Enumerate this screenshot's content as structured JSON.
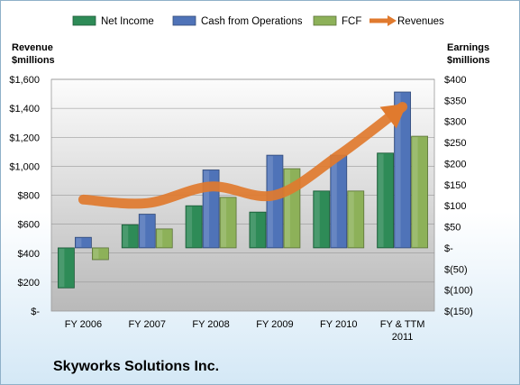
{
  "chart_data": {
    "type": "bar",
    "categories": [
      "FY 2006",
      "FY 2007",
      "FY 2008",
      "FY 2009",
      "FY 2010",
      "FY & TTM 2011"
    ],
    "series": [
      {
        "name": "Net Income",
        "axis": "right",
        "values": [
          -95,
          55,
          100,
          85,
          135,
          225
        ],
        "color": "#2e8b57"
      },
      {
        "name": "Cash from Operations",
        "axis": "right",
        "values": [
          25,
          80,
          185,
          220,
          220,
          370
        ],
        "color": "#4f73b8"
      },
      {
        "name": "FCF",
        "axis": "right",
        "values": [
          -28,
          45,
          120,
          188,
          135,
          265
        ],
        "color": "#8db159"
      },
      {
        "name": "Revenues",
        "axis": "left",
        "type": "line",
        "values": [
          770,
          745,
          860,
          800,
          1075,
          1410
        ],
        "color": "#e07a2e"
      }
    ],
    "left_axis": {
      "label_line1": "Revenue",
      "label_line2": "$millions",
      "ylim": [
        0,
        1600
      ],
      "ticks": [
        {
          "v": 0,
          "label": "$-"
        },
        {
          "v": 200,
          "label": "$200"
        },
        {
          "v": 400,
          "label": "$400"
        },
        {
          "v": 600,
          "label": "$600"
        },
        {
          "v": 800,
          "label": "$800"
        },
        {
          "v": 1000,
          "label": "$1,000"
        },
        {
          "v": 1200,
          "label": "$1,200"
        },
        {
          "v": 1400,
          "label": "$1,400"
        },
        {
          "v": 1600,
          "label": "$1,600"
        }
      ]
    },
    "right_axis": {
      "label_line1": "Earnings",
      "label_line2": "$millions",
      "ylim": [
        -150,
        400
      ],
      "ticks": [
        {
          "v": -150,
          "label": "$(150)"
        },
        {
          "v": -100,
          "label": "$(100)"
        },
        {
          "v": -50,
          "label": "$(50)"
        },
        {
          "v": 0,
          "label": "$-"
        },
        {
          "v": 50,
          "label": "$50"
        },
        {
          "v": 100,
          "label": "$100"
        },
        {
          "v": 150,
          "label": "$150"
        },
        {
          "v": 200,
          "label": "$200"
        },
        {
          "v": 250,
          "label": "$250"
        },
        {
          "v": 300,
          "label": "$300"
        },
        {
          "v": 350,
          "label": "$350"
        },
        {
          "v": 400,
          "label": "$400"
        }
      ]
    },
    "grid": true,
    "legend_position": "top"
  },
  "company_name": "Skyworks Solutions Inc."
}
